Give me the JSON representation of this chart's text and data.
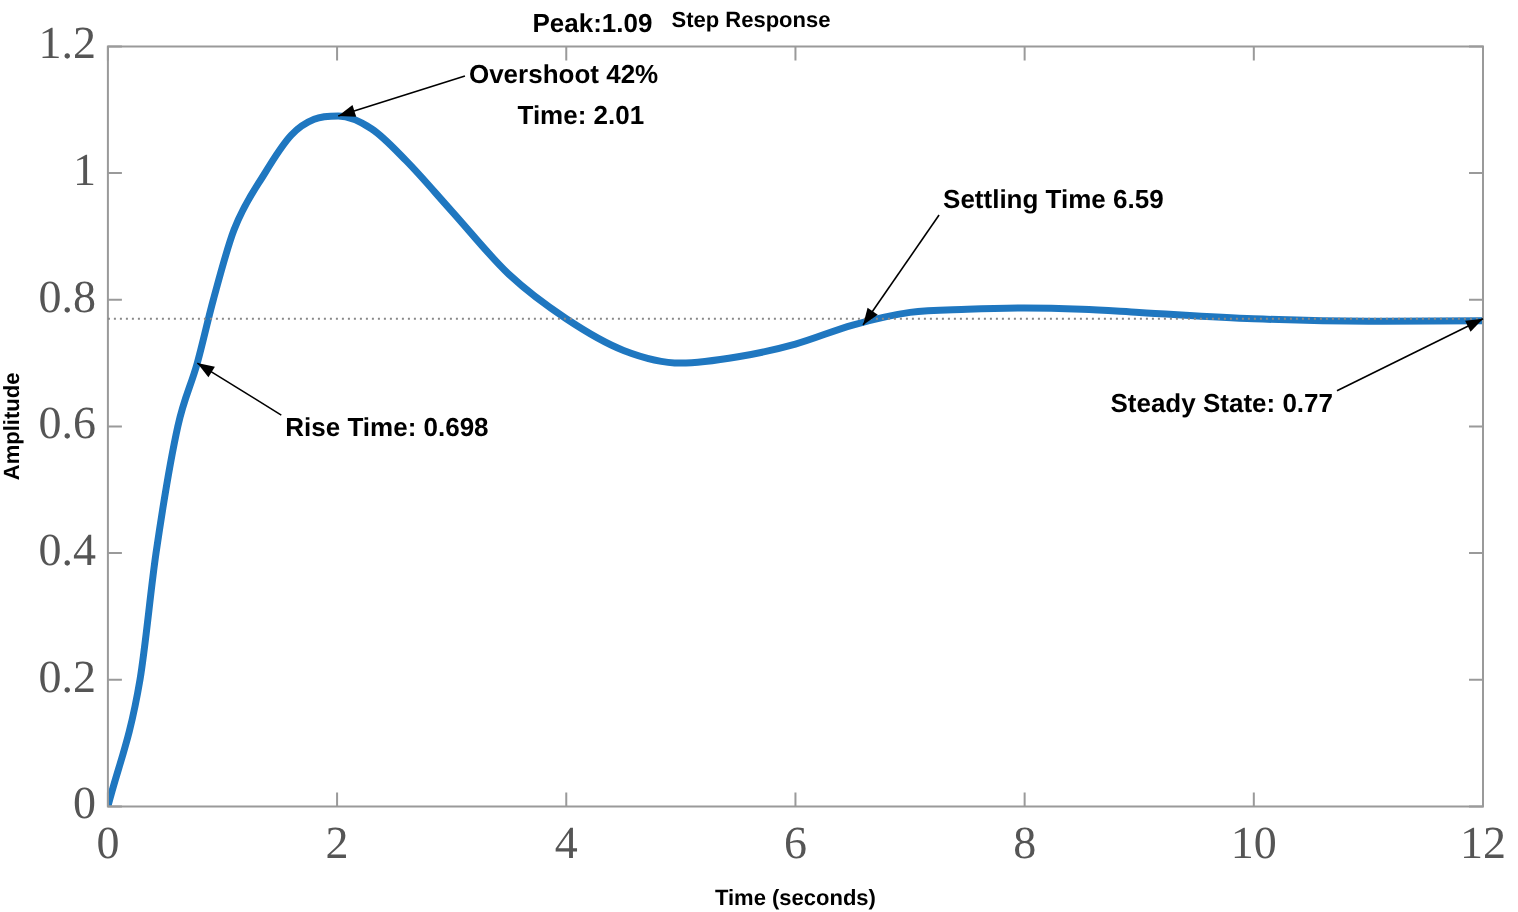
{
  "chart_data": {
    "type": "line",
    "title": "Step Response",
    "xlabel": "Time (seconds)",
    "ylabel": "Amplitude",
    "x": [
      0,
      0.28,
      0.42,
      0.61,
      0.78,
      0.92,
      1.1,
      1.37,
      1.6,
      1.8,
      2.01,
      2.3,
      2.6,
      3,
      3.5,
      4,
      4.5,
      5,
      5.5,
      6,
      6.5,
      7,
      7.5,
      8,
      8.5,
      9,
      10,
      11,
      12
    ],
    "series": [
      {
        "color": "#1f77c0",
        "values": [
          0,
          0.2,
          0.4,
          0.6,
          0.7,
          0.8,
          0.91,
          1.0,
          1.06,
          1.085,
          1.09,
          1.07,
          1.02,
          0.94,
          0.84,
          0.77,
          0.72,
          0.7,
          0.71,
          0.73,
          0.76,
          0.78,
          0.785,
          0.787,
          0.785,
          0.78,
          0.77,
          0.766,
          0.767
        ]
      }
    ],
    "xlim": [
      0,
      12
    ],
    "xticks": [
      0,
      2,
      4,
      6,
      8,
      10,
      12
    ],
    "ylim": [
      0,
      1.2
    ],
    "yticks": [
      0,
      0.2,
      0.4,
      0.6,
      0.8,
      1,
      1.2
    ],
    "grid": false,
    "legend": false,
    "marker": "none",
    "line_style": "solid",
    "ref_lines": [
      {
        "axis": "y",
        "value": 0.77,
        "color": "#888888",
        "line_style": "dotted"
      }
    ],
    "annotations": [
      "Peak:1.09",
      {
        "text": "Overshoot 42%",
        "x": 2.01,
        "y": 1.09
      },
      "Time: 2.01",
      {
        "text": "Rise Time: 0.698",
        "x": 0.78,
        "y": 0.7
      },
      {
        "text": "Settling Time 6.59",
        "x": 6.59,
        "y": 0.76
      },
      {
        "text": "Steady State: 0.77",
        "x": 12,
        "y": 0.77
      }
    ]
  }
}
